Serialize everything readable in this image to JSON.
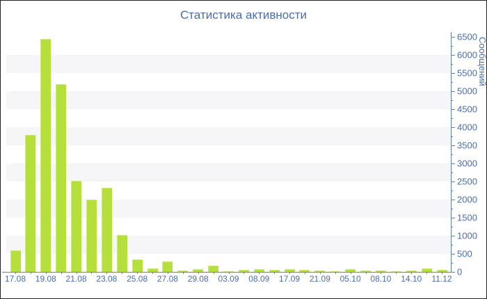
{
  "chart_data": {
    "type": "bar",
    "title": "Статистика активности",
    "ylabel": "Сообщений",
    "xlabel": "",
    "ylim": [
      0,
      6500
    ],
    "y_tick_step": 500,
    "y_minor_tick_step": 250,
    "legend": "none",
    "grid": "alternating horizontal 500-unit bands",
    "colors": {
      "bar": "#b5e03c",
      "axis": "#5b7fc2",
      "text": "#4a6cae",
      "band": "#f6f6f8",
      "background": "#ffffff",
      "frame": "#222222"
    },
    "y_tick_labels": [
      "0",
      "500",
      "1000",
      "1500",
      "2000",
      "2500",
      "3000",
      "3500",
      "4000",
      "4500",
      "5000",
      "5500",
      "6000",
      "6500"
    ],
    "x_tick_labels": [
      "17.08",
      "19.08",
      "21.08",
      "23.08",
      "25.08",
      "27.08",
      "29.08",
      "03.09",
      "08.09",
      "17.09",
      "21.09",
      "05.10",
      "08.10",
      "14.10",
      "11.12"
    ],
    "bars": [
      {
        "label": "17.08",
        "value": 590
      },
      {
        "label": "",
        "value": 3780
      },
      {
        "label": "19.08",
        "value": 6440
      },
      {
        "label": "",
        "value": 5190
      },
      {
        "label": "21.08",
        "value": 2520
      },
      {
        "label": "",
        "value": 2000
      },
      {
        "label": "23.08",
        "value": 2330
      },
      {
        "label": "",
        "value": 1010
      },
      {
        "label": "25.08",
        "value": 350
      },
      {
        "label": "",
        "value": 100
      },
      {
        "label": "27.08",
        "value": 290
      },
      {
        "label": "",
        "value": 45
      },
      {
        "label": "29.08",
        "value": 70
      },
      {
        "label": "",
        "value": 175
      },
      {
        "label": "03.09",
        "value": 25
      },
      {
        "label": "",
        "value": 65
      },
      {
        "label": "08.09",
        "value": 75
      },
      {
        "label": "",
        "value": 60
      },
      {
        "label": "17.09",
        "value": 75
      },
      {
        "label": "",
        "value": 65
      },
      {
        "label": "21.09",
        "value": 40
      },
      {
        "label": "",
        "value": 20
      },
      {
        "label": "05.10",
        "value": 75
      },
      {
        "label": "",
        "value": 40
      },
      {
        "label": "08.10",
        "value": 40
      },
      {
        "label": "",
        "value": 25
      },
      {
        "label": "14.10",
        "value": 40
      },
      {
        "label": "",
        "value": 105
      },
      {
        "label": "11.12",
        "value": 55
      }
    ]
  }
}
